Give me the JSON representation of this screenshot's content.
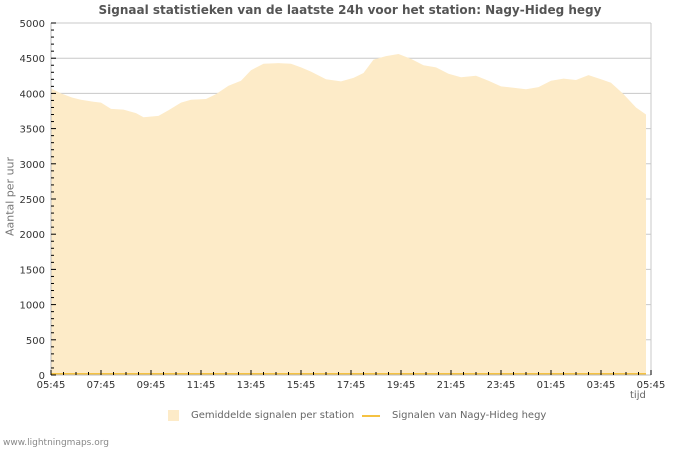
{
  "header": {
    "title": "Signaal statistieken van de laatste 24h voor het station: Nagy-Hideg hegy"
  },
  "colors": {
    "area_fill": "#fdebc8",
    "line": "#f5c242",
    "grid": "#c8c8c8",
    "axis": "#bbbbbb",
    "text": "#333333"
  },
  "footer": {
    "site": "www.lightningmaps.org"
  },
  "chart_data": {
    "type": "area",
    "title": "Signaal statistieken van de laatste 24h voor het station: Nagy-Hideg hegy",
    "xlabel": "tijd",
    "ylabel": "Aantal per uur",
    "ylim": [
      0,
      5000
    ],
    "yticks": [
      0,
      500,
      1000,
      1500,
      2000,
      2500,
      3000,
      3500,
      4000,
      4500,
      5000
    ],
    "xticks": [
      "05:45",
      "07:45",
      "09:45",
      "11:45",
      "13:45",
      "15:45",
      "17:45",
      "19:45",
      "21:45",
      "23:45",
      "01:45",
      "03:45",
      "05:45"
    ],
    "grid": true,
    "legend_position": "bottom",
    "legend": [
      "Gemiddelde signalen per station",
      "Signalen van Nagy-Hideg hegy"
    ],
    "series": [
      {
        "name": "Gemiddelde signalen per station",
        "kind": "area",
        "x_hours_from_start": [
          0,
          0.4,
          0.85,
          1.2,
          1.7,
          2.0,
          2.4,
          2.9,
          3.4,
          3.7,
          4.3,
          4.7,
          5.2,
          5.6,
          6.2,
          6.6,
          7.1,
          7.6,
          8.0,
          8.5,
          9.1,
          9.6,
          10.0,
          10.4,
          11.0,
          11.6,
          12.1,
          12.5,
          12.9,
          13.4,
          13.9,
          14.4,
          14.9,
          15.4,
          15.9,
          16.4,
          17.0,
          17.5,
          18.0,
          18.5,
          19.0,
          19.5,
          20.0,
          20.5,
          21.0,
          21.5,
          22.0,
          22.4,
          22.9,
          23.4,
          23.8
        ],
        "values": [
          4070,
          4000,
          3940,
          3910,
          3880,
          3870,
          3780,
          3770,
          3720,
          3660,
          3680,
          3760,
          3870,
          3910,
          3920,
          3990,
          4110,
          4180,
          4330,
          4420,
          4430,
          4420,
          4370,
          4310,
          4200,
          4170,
          4220,
          4290,
          4480,
          4530,
          4560,
          4490,
          4400,
          4370,
          4280,
          4230,
          4250,
          4180,
          4100,
          4080,
          4060,
          4090,
          4180,
          4210,
          4190,
          4260,
          4200,
          4150,
          3990,
          3800,
          3700
        ]
      },
      {
        "name": "Signalen van Nagy-Hideg hegy",
        "kind": "line",
        "values_note": "flat at ~0 along the x axis",
        "values": [
          0,
          0
        ]
      }
    ]
  }
}
